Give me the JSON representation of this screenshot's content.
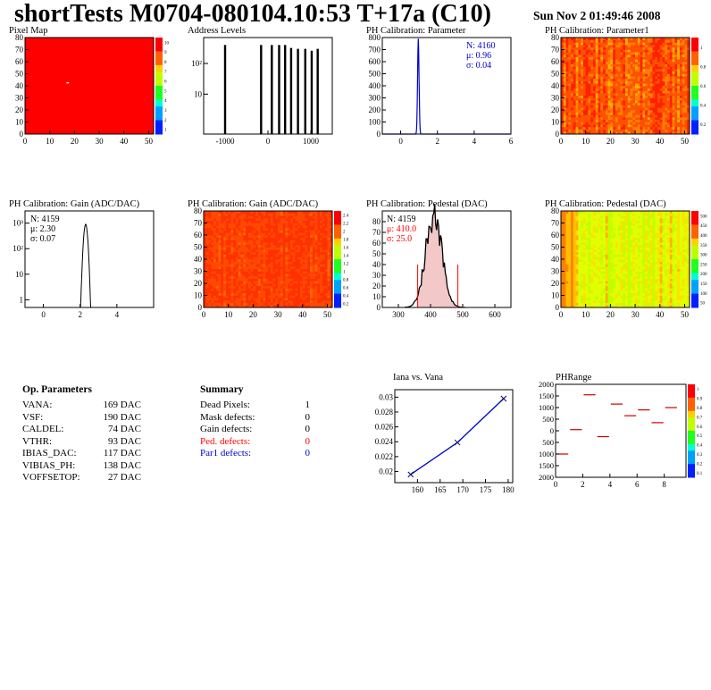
{
  "header": {
    "title": "shortTests M0704-080104.10:53 T+17a (C10)",
    "date": "Sun Nov  2 01:49:46 2008"
  },
  "chart_data": [
    {
      "id": "pixel_map",
      "type": "heatmap",
      "title": "Pixel Map",
      "xlim": [
        0,
        52
      ],
      "ylim": [
        0,
        80
      ],
      "xticks": [
        0,
        10,
        20,
        30,
        40,
        50
      ],
      "yticks": [
        0,
        10,
        20,
        30,
        40,
        50,
        60,
        70,
        80
      ],
      "uniform_value": 10,
      "zscale": [
        "10",
        "9",
        "8",
        "7",
        "6",
        "5",
        "4",
        "3",
        "2",
        "1"
      ],
      "hot_pixels": [
        {
          "x": 16,
          "y": 43
        }
      ]
    },
    {
      "id": "address_levels",
      "type": "bar",
      "title": "Address Levels",
      "xlim": [
        -1500,
        1500
      ],
      "log_y": true,
      "xticks": [
        -1000,
        0,
        1000
      ],
      "yticks": [
        "10",
        "10²"
      ],
      "peaks_x": [
        -1000,
        -160,
        90,
        260,
        400,
        540,
        700,
        870,
        1020,
        1160
      ],
      "peaks_h": [
        400,
        400,
        400,
        400,
        400,
        320,
        300,
        300,
        260,
        300
      ]
    },
    {
      "id": "ph_parameter",
      "type": "bar",
      "title": "PH Calibration: Parameter",
      "xlim": [
        -1,
        6
      ],
      "xticks": [
        0,
        2,
        4,
        6
      ],
      "ylim": [
        0,
        800
      ],
      "yticks": [
        0,
        100,
        200,
        300,
        400,
        500,
        600,
        700,
        800
      ],
      "peak_mean": 0.96,
      "peak_sigma": 0.04,
      "peak_height": 790,
      "stats": {
        "n": "N: 4160",
        "mu": "μ: 0.96",
        "sigma": "σ: 0.04"
      },
      "stats_color": "#0000cc"
    },
    {
      "id": "ph_parameter1",
      "type": "heatmap",
      "title": "PH Calibration: Parameter1",
      "xlim": [
        0,
        52
      ],
      "ylim": [
        0,
        80
      ],
      "xticks": [
        0,
        10,
        20,
        30,
        40,
        50
      ],
      "yticks": [
        0,
        10,
        20,
        30,
        40,
        50,
        60,
        70,
        80
      ],
      "zscale": [
        "1",
        "0.8",
        "0.6",
        "0.4",
        "0.2"
      ]
    },
    {
      "id": "ph_gain_hist",
      "type": "bar",
      "title": "PH Calibration: Gain (ADC/DAC)",
      "xlim": [
        -1,
        6
      ],
      "xticks": [
        0,
        2,
        4
      ],
      "log_y": true,
      "yticks": [
        "1",
        "10",
        "10²",
        "10³"
      ],
      "peak_mean": 2.3,
      "peak_sigma": 0.07,
      "peak_height": 900,
      "stats": {
        "n": "N: 4159",
        "mu": "μ: 2.30",
        "sigma": "σ: 0.07"
      },
      "stats_color": "#000000"
    },
    {
      "id": "ph_gain_map",
      "type": "heatmap",
      "title": "PH Calibration: Gain (ADC/DAC)",
      "xlim": [
        0,
        52
      ],
      "ylim": [
        0,
        80
      ],
      "xticks": [
        0,
        10,
        20,
        30,
        40,
        50
      ],
      "yticks": [
        0,
        10,
        20,
        30,
        40,
        50,
        60,
        70,
        80
      ],
      "zscale": [
        "2.4",
        "2.2",
        "2",
        "1.8",
        "1.6",
        "1.4",
        "1.2",
        "1",
        "0.8",
        "0.6",
        "0.4",
        "0.2"
      ]
    },
    {
      "id": "ph_pedestal_hist",
      "type": "bar",
      "title": "PH Calibration: Pedestal (DAC)",
      "xlim": [
        250,
        650
      ],
      "xticks": [
        300,
        400,
        500,
        600
      ],
      "ylim": [
        0,
        90
      ],
      "yticks": [
        0,
        10,
        20,
        30,
        40,
        50,
        60,
        70,
        80
      ],
      "mean": 410.0,
      "sigma": 25.0,
      "peak_height": 86,
      "cut_lines_x": [
        360,
        485
      ],
      "stats": {
        "n": "N: 4159",
        "mu": "μ: 410.0",
        "sigma": "σ: 25.0"
      },
      "stats_color": "#ff0000"
    },
    {
      "id": "ph_pedestal_map",
      "type": "heatmap",
      "title": "PH Calibration: Pedestal (DAC)",
      "xlim": [
        0,
        52
      ],
      "ylim": [
        0,
        80
      ],
      "xticks": [
        0,
        10,
        20,
        30,
        40,
        50
      ],
      "yticks": [
        0,
        10,
        20,
        30,
        40,
        50,
        60,
        70,
        80
      ],
      "zscale": [
        "500",
        "450",
        "400",
        "350",
        "300",
        "250",
        "200",
        "150",
        "100",
        "50"
      ]
    },
    {
      "id": "iana_vana",
      "type": "line",
      "title": "Iana vs. Vana",
      "xlim": [
        155,
        181
      ],
      "xticks": [
        160,
        165,
        170,
        175,
        180
      ],
      "ylim": [
        0.0185,
        0.031
      ],
      "yticks": [
        "0.02",
        "0.022",
        "0.024",
        "0.026",
        "0.028",
        "0.03"
      ],
      "x": [
        158.5,
        168.8,
        179.0
      ],
      "y": [
        0.0196,
        0.0239,
        0.0298
      ]
    },
    {
      "id": "ph_range",
      "type": "scatter",
      "title": "PHRange",
      "xlim": [
        0,
        9.6
      ],
      "xticks": [
        0,
        2,
        4,
        6,
        8
      ],
      "ylim": [
        -2000,
        2000
      ],
      "yticks": [
        "2000",
        "1500",
        "1000",
        "500",
        "0",
        "500",
        "1000",
        "1500",
        "2000"
      ],
      "x": [
        0.5,
        1.5,
        2.5,
        3.5,
        4.5,
        5.5,
        6.5,
        7.5,
        8.5
      ],
      "y": [
        -1000,
        50,
        1550,
        -250,
        1150,
        650,
        900,
        350,
        1000
      ],
      "zscale": [
        "1",
        "0.9",
        "0.8",
        "0.7",
        "0.6",
        "0.5",
        "0.4",
        "0.3",
        "0.2",
        "0.1"
      ]
    }
  ],
  "op_parameters": {
    "header": "Op. Parameters",
    "rows": [
      {
        "name": "VANA:",
        "value": "169 DAC"
      },
      {
        "name": "VSF:",
        "value": "190 DAC"
      },
      {
        "name": "CALDEL:",
        "value": "74 DAC"
      },
      {
        "name": "VTHR:",
        "value": "93 DAC"
      },
      {
        "name": "IBIAS_DAC:",
        "value": "117 DAC"
      },
      {
        "name": "VIBIAS_PH:",
        "value": "138 DAC"
      },
      {
        "name": "VOFFSETOP:",
        "value": "27 DAC"
      }
    ]
  },
  "summary": {
    "header": "Summary",
    "rows": [
      {
        "name": "Dead Pixels:",
        "value": "1",
        "color": "#000000"
      },
      {
        "name": "Mask defects:",
        "value": "0",
        "color": "#000000"
      },
      {
        "name": "Gain defects:",
        "value": "0",
        "color": "#000000"
      },
      {
        "name": "Ped. defects:",
        "value": "0",
        "color": "#ff0000"
      },
      {
        "name": "Par1 defects:",
        "value": "0",
        "color": "#0000cc"
      }
    ]
  }
}
